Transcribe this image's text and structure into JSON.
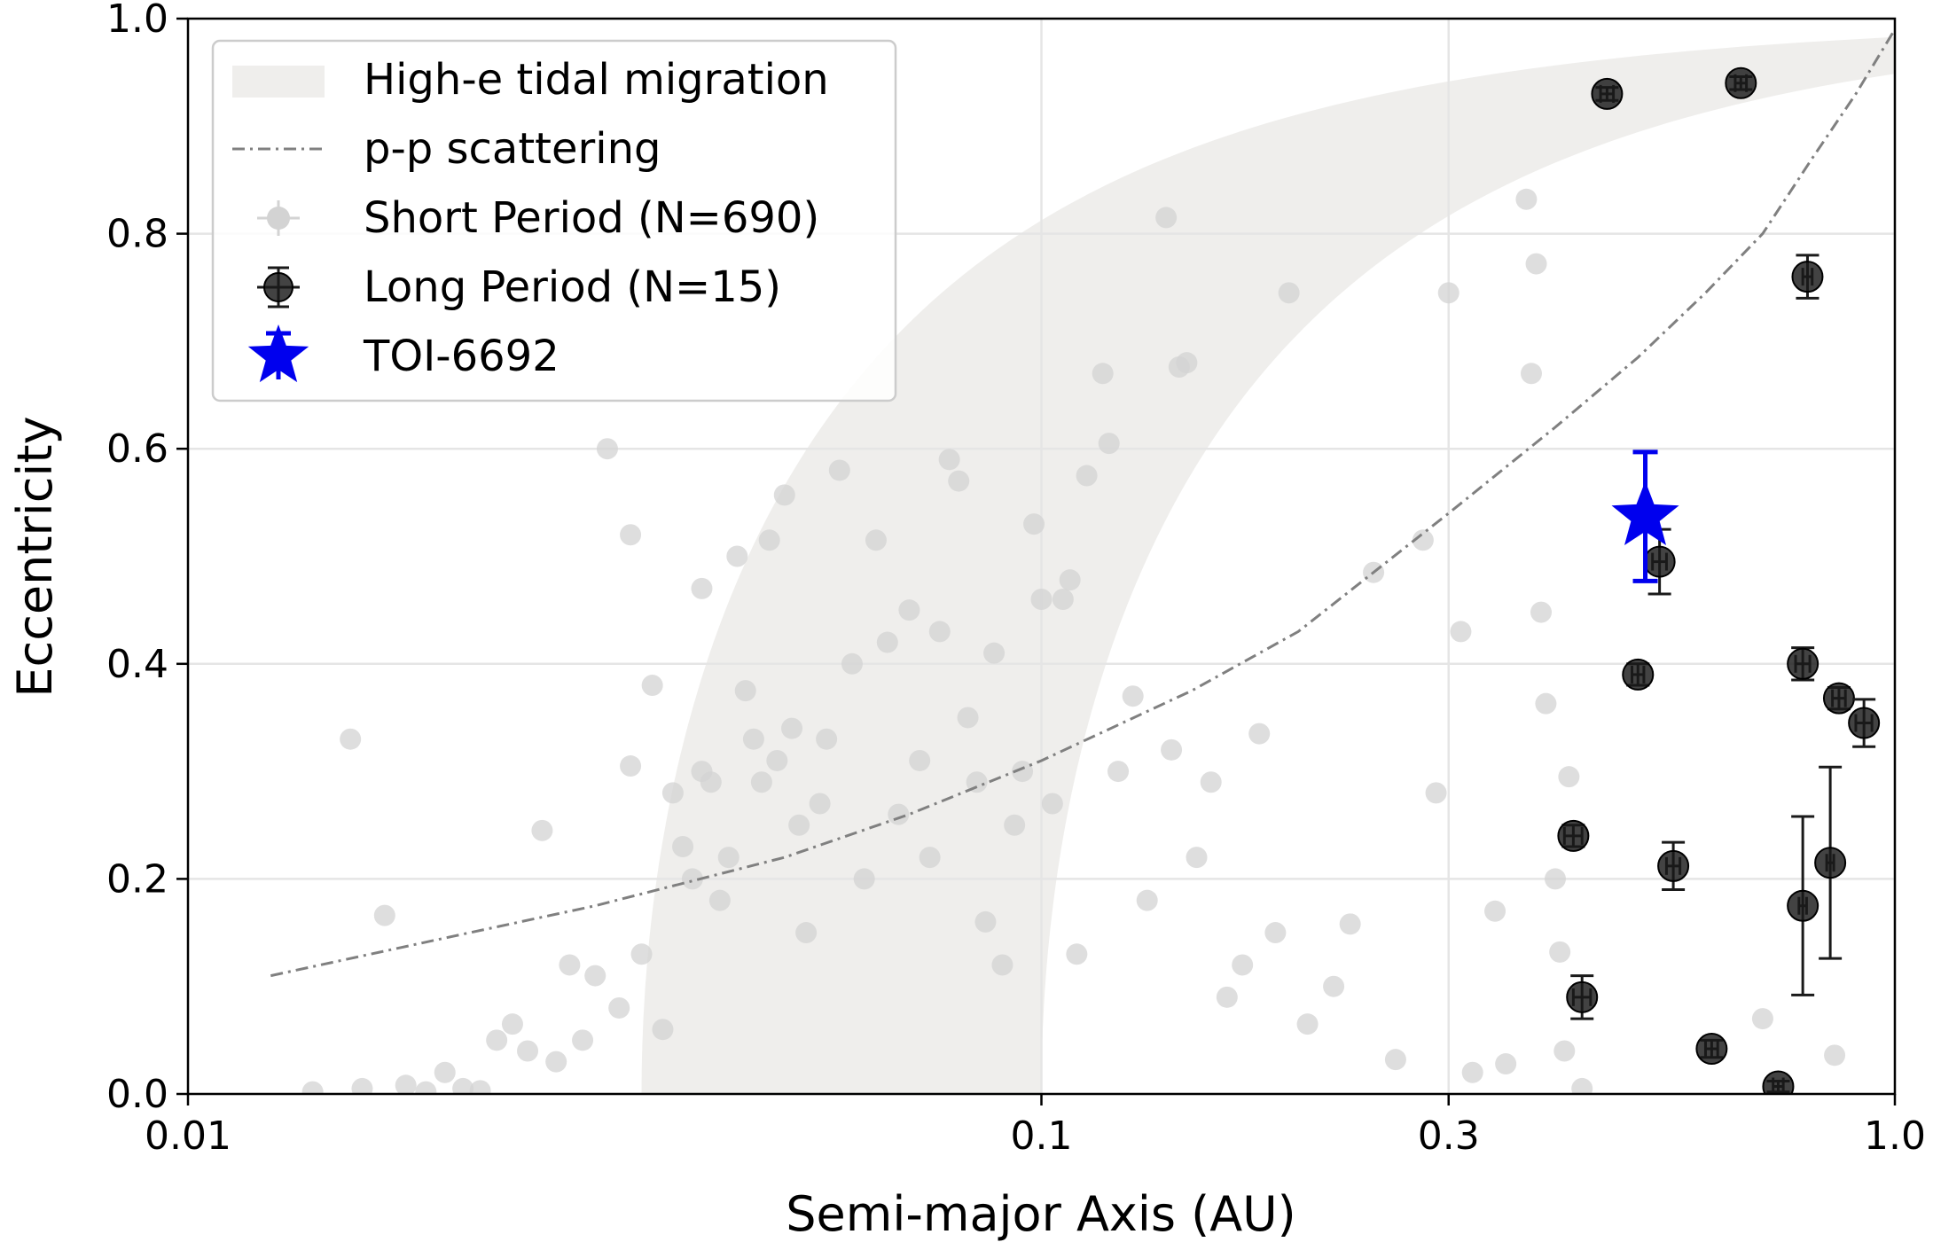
{
  "chart_data": {
    "type": "scatter",
    "xlabel": "Semi-major Axis (AU)",
    "ylabel": "Eccentricity",
    "xscale": "log",
    "xlim": [
      0.01,
      1.0
    ],
    "ylim": [
      0.0,
      1.0
    ],
    "xticks": [
      {
        "value": 0.01,
        "label": "0.01"
      },
      {
        "value": 0.1,
        "label": "0.1"
      },
      {
        "value": 0.3,
        "label": "0.3"
      },
      {
        "value": 1.0,
        "label": "1.0"
      }
    ],
    "yticks": [
      {
        "value": 0.0,
        "label": "0.0"
      },
      {
        "value": 0.2,
        "label": "0.2"
      },
      {
        "value": 0.4,
        "label": "0.4"
      },
      {
        "value": 0.6,
        "label": "0.6"
      },
      {
        "value": 0.8,
        "label": "0.8"
      },
      {
        "value": 1.0,
        "label": "1.0"
      }
    ],
    "grid": true,
    "legend_position": "top-left",
    "legend": [
      {
        "key": "band",
        "label": "High-e tidal migration"
      },
      {
        "key": "line",
        "label": "p-p scattering"
      },
      {
        "key": "short",
        "label": "Short Period (N=690)"
      },
      {
        "key": "long",
        "label": "Long Period (N=15)"
      },
      {
        "key": "target",
        "label": "TOI-6692"
      }
    ],
    "colors": {
      "band": "#efeeec",
      "line": "#808080",
      "short": "#d3d3d3",
      "long": "#1a1a1a",
      "target": "#0000ee",
      "grid": "#e5e5e5"
    },
    "tidal_migration_band": {
      "x_inner_at_e0": 0.034,
      "x_outer_at_e0": 0.1,
      "description": "constant final period band a(1-e^2)"
    },
    "pp_scattering_curve": {
      "x_range": [
        0.0125,
        1.0
      ],
      "points": [
        [
          0.0125,
          0.11
        ],
        [
          0.02,
          0.145
        ],
        [
          0.03,
          0.175
        ],
        [
          0.05,
          0.22
        ],
        [
          0.07,
          0.26
        ],
        [
          0.1,
          0.31
        ],
        [
          0.15,
          0.375
        ],
        [
          0.2,
          0.43
        ],
        [
          0.3,
          0.54
        ],
        [
          0.4,
          0.62
        ],
        [
          0.5,
          0.685
        ],
        [
          0.6,
          0.745
        ],
        [
          0.7,
          0.8
        ],
        [
          0.8,
          0.87
        ],
        [
          0.9,
          0.93
        ],
        [
          1.0,
          0.99
        ]
      ]
    },
    "series": [
      {
        "name": "Long Period (N=15)",
        "points": [
          {
            "x": 0.46,
            "y": 0.93,
            "xerr": 0.008,
            "yerr": 0.006
          },
          {
            "x": 0.66,
            "y": 0.94,
            "xerr": 0.01,
            "yerr": 0.006
          },
          {
            "x": 0.79,
            "y": 0.76,
            "xerr": 0.01,
            "yerr": 0.02
          },
          {
            "x": 0.53,
            "y": 0.495,
            "xerr": 0.01,
            "yerr": 0.03
          },
          {
            "x": 0.5,
            "y": 0.39,
            "xerr": 0.008,
            "yerr": 0.01
          },
          {
            "x": 0.78,
            "y": 0.4,
            "xerr": 0.015,
            "yerr": 0.015
          },
          {
            "x": 0.86,
            "y": 0.368,
            "xerr": 0.015,
            "yerr": 0.01
          },
          {
            "x": 0.92,
            "y": 0.345,
            "xerr": 0.02,
            "yerr": 0.022
          },
          {
            "x": 0.42,
            "y": 0.24,
            "xerr": 0.01,
            "yerr": 0.01
          },
          {
            "x": 0.55,
            "y": 0.212,
            "xerr": 0.01,
            "yerr": 0.022
          },
          {
            "x": 0.78,
            "y": 0.175,
            "xerr": 0.008,
            "yerr": 0.083
          },
          {
            "x": 0.84,
            "y": 0.215,
            "xerr": 0.008,
            "yerr": 0.089
          },
          {
            "x": 0.43,
            "y": 0.09,
            "xerr": 0.01,
            "yerr": 0.02
          },
          {
            "x": 0.61,
            "y": 0.042,
            "xerr": 0.01,
            "yerr": 0.008
          },
          {
            "x": 0.73,
            "y": 0.007,
            "xerr": 0.01,
            "yerr": 0.005
          }
        ]
      },
      {
        "name": "TOI-6692",
        "points": [
          {
            "x": 0.51,
            "y": 0.537,
            "xerr": 0.008,
            "yerr": 0.06
          }
        ]
      },
      {
        "name": "Short Period (N=690)",
        "points": [
          {
            "x": 0.0155,
            "y": 0.33
          },
          {
            "x": 0.016,
            "y": 0.005
          },
          {
            "x": 0.017,
            "y": 0.166
          },
          {
            "x": 0.014,
            "y": 0.002
          },
          {
            "x": 0.018,
            "y": 0.008
          },
          {
            "x": 0.019,
            "y": 0.002
          },
          {
            "x": 0.02,
            "y": 0.02
          },
          {
            "x": 0.021,
            "y": 0.005
          },
          {
            "x": 0.022,
            "y": 0.003
          },
          {
            "x": 0.023,
            "y": 0.05
          },
          {
            "x": 0.024,
            "y": 0.065
          },
          {
            "x": 0.025,
            "y": 0.04
          },
          {
            "x": 0.026,
            "y": 0.245
          },
          {
            "x": 0.027,
            "y": 0.03
          },
          {
            "x": 0.028,
            "y": 0.12
          },
          {
            "x": 0.029,
            "y": 0.05
          },
          {
            "x": 0.03,
            "y": 0.11
          },
          {
            "x": 0.031,
            "y": 0.6
          },
          {
            "x": 0.032,
            "y": 0.08
          },
          {
            "x": 0.033,
            "y": 0.52
          },
          {
            "x": 0.033,
            "y": 0.305
          },
          {
            "x": 0.034,
            "y": 0.13
          },
          {
            "x": 0.035,
            "y": 0.38
          },
          {
            "x": 0.036,
            "y": 0.06
          },
          {
            "x": 0.037,
            "y": 0.28
          },
          {
            "x": 0.038,
            "y": 0.23
          },
          {
            "x": 0.039,
            "y": 0.2
          },
          {
            "x": 0.04,
            "y": 0.47
          },
          {
            "x": 0.04,
            "y": 0.3
          },
          {
            "x": 0.041,
            "y": 0.29
          },
          {
            "x": 0.042,
            "y": 0.18
          },
          {
            "x": 0.043,
            "y": 0.22
          },
          {
            "x": 0.044,
            "y": 0.5
          },
          {
            "x": 0.045,
            "y": 0.375
          },
          {
            "x": 0.046,
            "y": 0.33
          },
          {
            "x": 0.047,
            "y": 0.29
          },
          {
            "x": 0.048,
            "y": 0.515
          },
          {
            "x": 0.049,
            "y": 0.31
          },
          {
            "x": 0.05,
            "y": 0.557
          },
          {
            "x": 0.051,
            "y": 0.34
          },
          {
            "x": 0.052,
            "y": 0.25
          },
          {
            "x": 0.053,
            "y": 0.15
          },
          {
            "x": 0.055,
            "y": 0.27
          },
          {
            "x": 0.056,
            "y": 0.33
          },
          {
            "x": 0.058,
            "y": 0.58
          },
          {
            "x": 0.06,
            "y": 0.4
          },
          {
            "x": 0.062,
            "y": 0.2
          },
          {
            "x": 0.064,
            "y": 0.515
          },
          {
            "x": 0.066,
            "y": 0.42
          },
          {
            "x": 0.068,
            "y": 0.26
          },
          {
            "x": 0.07,
            "y": 0.45
          },
          {
            "x": 0.072,
            "y": 0.31
          },
          {
            "x": 0.074,
            "y": 0.22
          },
          {
            "x": 0.076,
            "y": 0.43
          },
          {
            "x": 0.078,
            "y": 0.59
          },
          {
            "x": 0.08,
            "y": 0.57
          },
          {
            "x": 0.082,
            "y": 0.35
          },
          {
            "x": 0.084,
            "y": 0.29
          },
          {
            "x": 0.086,
            "y": 0.16
          },
          {
            "x": 0.088,
            "y": 0.41
          },
          {
            "x": 0.09,
            "y": 0.12
          },
          {
            "x": 0.093,
            "y": 0.25
          },
          {
            "x": 0.095,
            "y": 0.3
          },
          {
            "x": 0.098,
            "y": 0.53
          },
          {
            "x": 0.1,
            "y": 0.46
          },
          {
            "x": 0.103,
            "y": 0.27
          },
          {
            "x": 0.106,
            "y": 0.46
          },
          {
            "x": 0.108,
            "y": 0.478
          },
          {
            "x": 0.11,
            "y": 0.13
          },
          {
            "x": 0.113,
            "y": 0.575
          },
          {
            "x": 0.118,
            "y": 0.67
          },
          {
            "x": 0.12,
            "y": 0.605
          },
          {
            "x": 0.123,
            "y": 0.3
          },
          {
            "x": 0.128,
            "y": 0.37
          },
          {
            "x": 0.133,
            "y": 0.18
          },
          {
            "x": 0.14,
            "y": 0.815
          },
          {
            "x": 0.142,
            "y": 0.32
          },
          {
            "x": 0.145,
            "y": 0.676
          },
          {
            "x": 0.148,
            "y": 0.68
          },
          {
            "x": 0.152,
            "y": 0.22
          },
          {
            "x": 0.158,
            "y": 0.29
          },
          {
            "x": 0.165,
            "y": 0.09
          },
          {
            "x": 0.172,
            "y": 0.12
          },
          {
            "x": 0.18,
            "y": 0.335
          },
          {
            "x": 0.188,
            "y": 0.15
          },
          {
            "x": 0.195,
            "y": 0.745
          },
          {
            "x": 0.205,
            "y": 0.065
          },
          {
            "x": 0.22,
            "y": 0.1
          },
          {
            "x": 0.23,
            "y": 0.158
          },
          {
            "x": 0.245,
            "y": 0.485
          },
          {
            "x": 0.26,
            "y": 0.032
          },
          {
            "x": 0.28,
            "y": 0.515
          },
          {
            "x": 0.29,
            "y": 0.28
          },
          {
            "x": 0.3,
            "y": 0.745
          },
          {
            "x": 0.31,
            "y": 0.43
          },
          {
            "x": 0.32,
            "y": 0.02
          },
          {
            "x": 0.34,
            "y": 0.17
          },
          {
            "x": 0.35,
            "y": 0.028
          },
          {
            "x": 0.37,
            "y": 0.832
          },
          {
            "x": 0.375,
            "y": 0.67
          },
          {
            "x": 0.38,
            "y": 0.772
          },
          {
            "x": 0.385,
            "y": 0.448
          },
          {
            "x": 0.39,
            "y": 0.363
          },
          {
            "x": 0.4,
            "y": 0.2
          },
          {
            "x": 0.405,
            "y": 0.132
          },
          {
            "x": 0.41,
            "y": 0.04
          },
          {
            "x": 0.415,
            "y": 0.295
          },
          {
            "x": 0.43,
            "y": 0.005
          },
          {
            "x": 0.7,
            "y": 0.07
          },
          {
            "x": 0.85,
            "y": 0.036
          }
        ]
      }
    ]
  }
}
